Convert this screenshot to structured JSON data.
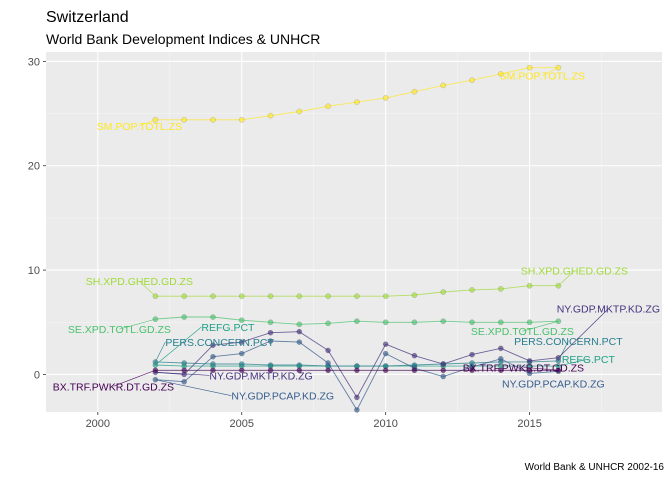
{
  "chart_data": {
    "type": "line",
    "title": "Switzerland",
    "subtitle": "World Bank Development Indices & UNHCR",
    "caption": "World Bank & UNHCR 2002-16",
    "xlabel": "",
    "ylabel": "",
    "xlim": [
      1998.2,
      2019.6
    ],
    "ylim": [
      -3.6,
      30.9
    ],
    "x_ticks": [
      2000,
      2005,
      2010,
      2015
    ],
    "y_ticks": [
      0,
      10,
      20,
      30
    ],
    "grid": true,
    "legend": "none",
    "x": [
      2002,
      2003,
      2004,
      2005,
      2006,
      2007,
      2008,
      2009,
      2010,
      2011,
      2012,
      2013,
      2014,
      2015,
      2016
    ],
    "series": [
      {
        "name": "SM.POP.TOTL.ZS",
        "color": "#FDE725",
        "values": [
          24.4,
          24.4,
          24.4,
          24.4,
          24.8,
          25.2,
          25.7,
          26.1,
          26.5,
          27.1,
          27.7,
          28.2,
          28.8,
          29.4,
          29.4
        ]
      },
      {
        "name": "SH.XPD.GHED.GD.ZS",
        "color": "#A0DA39",
        "values": [
          7.5,
          7.5,
          7.5,
          7.5,
          7.5,
          7.5,
          7.5,
          7.5,
          7.5,
          7.6,
          7.9,
          8.1,
          8.2,
          8.5,
          8.5
        ]
      },
      {
        "name": "SE.XPD.TOTL.GD.ZS",
        "color": "#4AC16D",
        "values": [
          5.3,
          5.5,
          5.5,
          5.2,
          5.0,
          4.8,
          4.9,
          5.1,
          5.0,
          5.0,
          5.1,
          5.0,
          5.0,
          5.0,
          5.1
        ]
      },
      {
        "name": "REFG.PCT",
        "color": "#1FA187",
        "values": [
          0.9,
          0.8,
          0.8,
          0.8,
          0.8,
          0.8,
          0.8,
          0.8,
          0.8,
          0.8,
          0.8,
          0.8,
          0.8,
          0.8,
          0.8
        ]
      },
      {
        "name": "PERS.CONCERN.PCT",
        "color": "#277F8E",
        "values": [
          1.2,
          1.1,
          1.0,
          1.0,
          0.9,
          0.9,
          0.8,
          0.8,
          0.8,
          0.9,
          1.0,
          1.1,
          1.2,
          1.2,
          1.3
        ]
      },
      {
        "name": "NY.GDP.PCAP.KD.ZG",
        "color": "#365C8D",
        "values": [
          -0.5,
          -0.7,
          1.7,
          2.0,
          3.2,
          3.1,
          1.1,
          -3.4,
          2.0,
          0.6,
          -0.2,
          0.7,
          1.5,
          0.1,
          0.3
        ]
      },
      {
        "name": "NY.GDP.MKTP.KD.ZG",
        "color": "#46337E",
        "values": [
          0.2,
          0.0,
          2.8,
          3.1,
          4.0,
          4.1,
          2.3,
          -2.2,
          2.9,
          1.8,
          1.0,
          1.9,
          2.5,
          1.3,
          1.6
        ]
      },
      {
        "name": "BX.TRF.PWKR.DT.GD.ZS",
        "color": "#440154",
        "values": [
          0.4,
          0.4,
          0.4,
          0.4,
          0.4,
          0.4,
          0.4,
          0.4,
          0.4,
          0.4,
          0.4,
          0.4,
          0.4,
          0.4,
          0.4
        ]
      }
    ]
  }
}
